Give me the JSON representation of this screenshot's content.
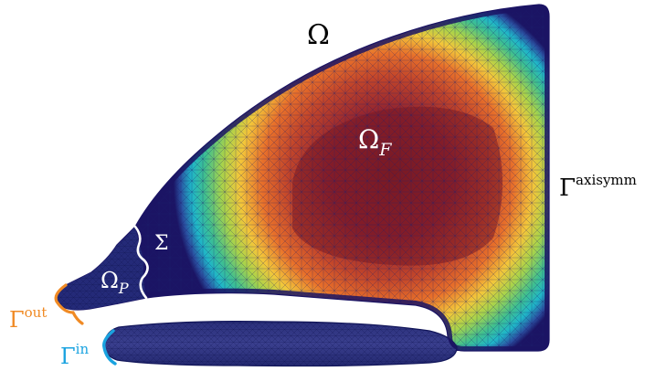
{
  "figure": {
    "labels": {
      "omega": "Ω",
      "omega_f_main": "Ω",
      "omega_f_sub": "F",
      "sigma": "Σ",
      "omega_p_main": "Ω",
      "omega_p_sub": "P",
      "gamma_axisymm_main": "Γ",
      "gamma_axisymm_sup": "axisymm",
      "gamma_out_main": "Γ",
      "gamma_out_sup": "out",
      "gamma_in_main": "Γ",
      "gamma_in_sup": "in"
    },
    "colors": {
      "mesh_edge": "#1a1f6e",
      "low": "#1b1464",
      "cyan": "#1fb6c8",
      "green": "#7cc243",
      "yellow": "#f3e33a",
      "orange": "#e8702a",
      "high": "#8a1f2a",
      "interface": "#ffffff",
      "gamma_out": "#f08a24",
      "gamma_in": "#1aa3e0",
      "text": "#000000"
    }
  }
}
